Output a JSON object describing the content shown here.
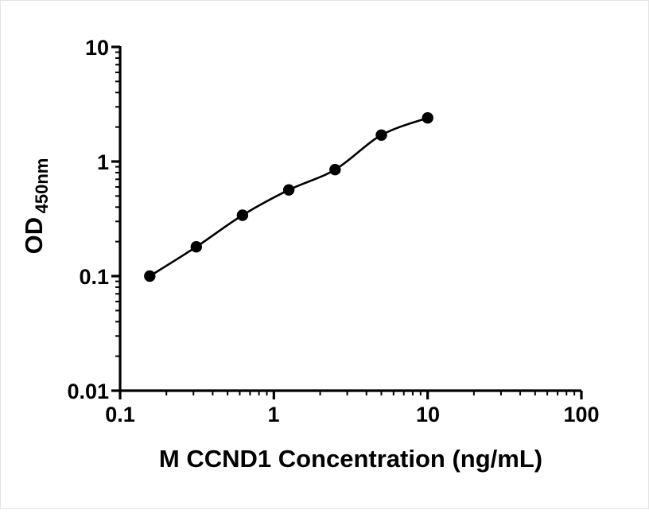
{
  "chart_data": {
    "type": "scatter",
    "title": "",
    "xlabel": "M CCND1 Concentration (ng/mL)",
    "ylabel_main": "OD",
    "ylabel_sub": "450nm",
    "x_scale": "log",
    "y_scale": "log",
    "xlim": [
      0.1,
      100
    ],
    "ylim": [
      0.01,
      10
    ],
    "x_ticks": [
      0.1,
      1,
      10,
      100
    ],
    "x_tick_labels": [
      "0.1",
      "1",
      "10",
      "100"
    ],
    "y_ticks": [
      10,
      1,
      0.1,
      0.01
    ],
    "y_tick_labels": [
      "10",
      "1",
      "0.1",
      "0.01"
    ],
    "grid": "off",
    "legend": "none",
    "marker_color": "#000000",
    "line_color": "#000000",
    "axis_color": "#000000",
    "points": [
      {
        "x": 0.156,
        "y": 0.1
      },
      {
        "x": 0.313,
        "y": 0.18
      },
      {
        "x": 0.625,
        "y": 0.34
      },
      {
        "x": 1.25,
        "y": 0.565
      },
      {
        "x": 2.5,
        "y": 0.85
      },
      {
        "x": 5,
        "y": 1.7
      },
      {
        "x": 10,
        "y": 2.4
      }
    ]
  }
}
